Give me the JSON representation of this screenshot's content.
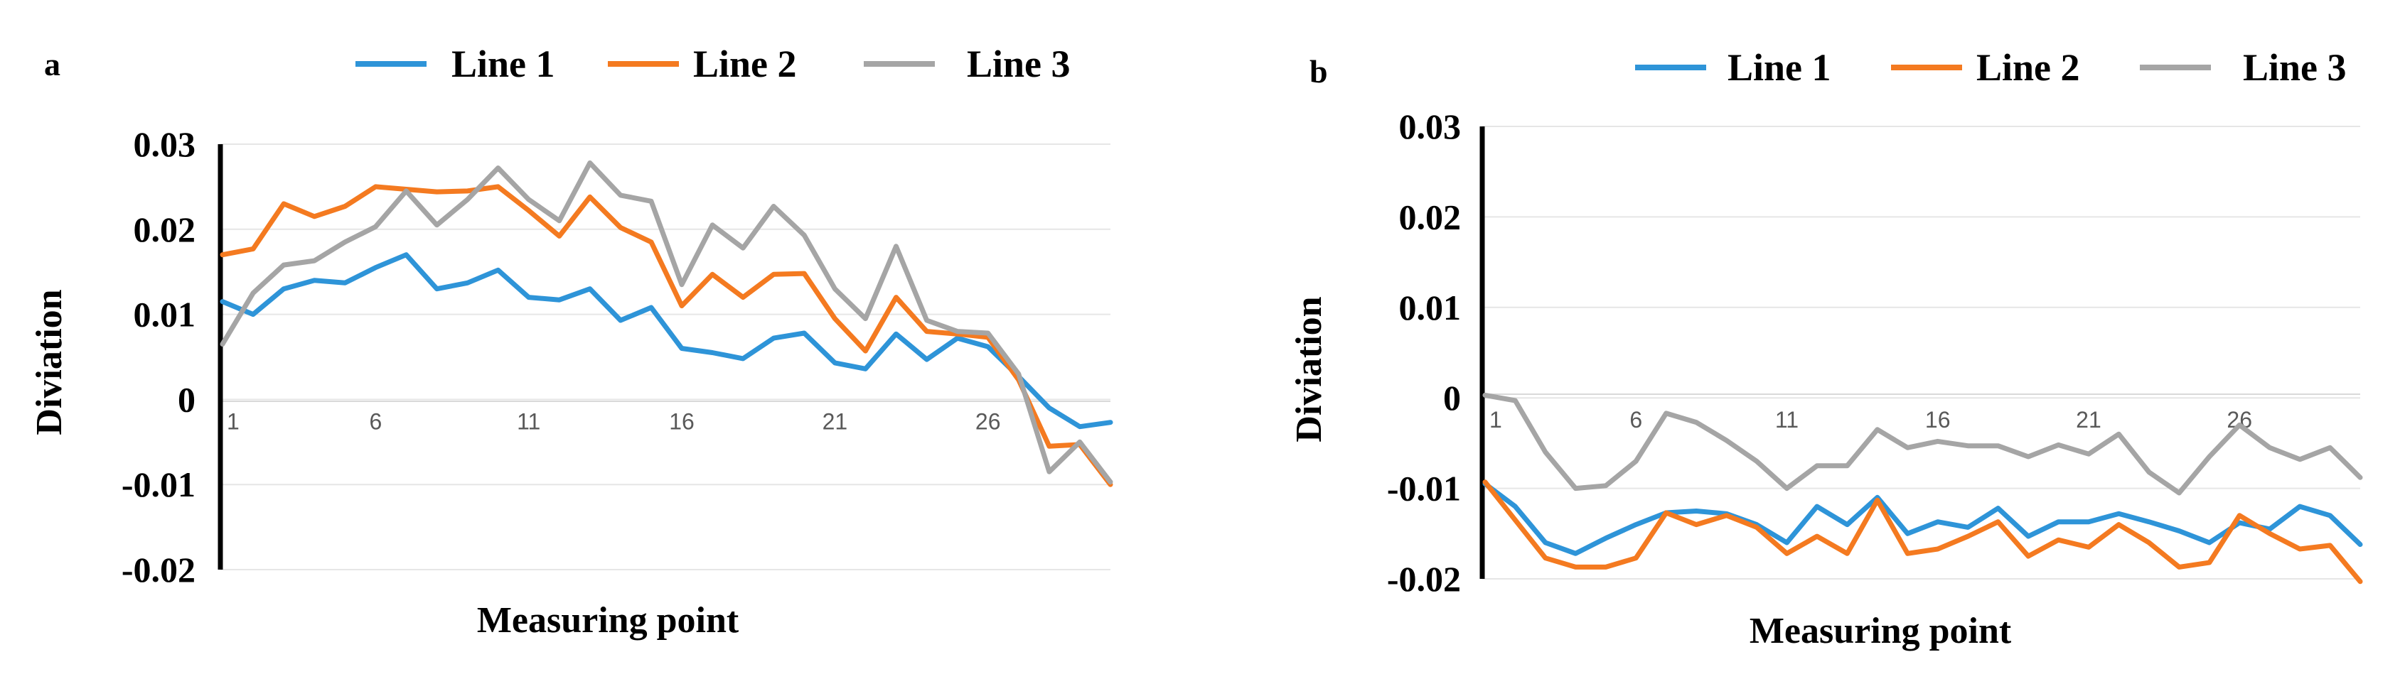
{
  "colors": {
    "line1": "#2e94d8",
    "line2": "#f47a20",
    "line3": "#a5a5a5"
  },
  "chart_data": [
    {
      "type": "line",
      "panel_label": "a",
      "title": "",
      "xlabel": "Measuring point",
      "ylabel": "Diviation",
      "ylim": [
        -0.02,
        0.03
      ],
      "yticks": [
        -0.02,
        -0.01,
        0,
        0.01,
        0.02,
        0.03
      ],
      "ytick_labels": [
        "-0.02",
        "-0.01",
        "0",
        "0.01",
        "0.02",
        "0.03"
      ],
      "x": [
        1,
        2,
        3,
        4,
        5,
        6,
        7,
        8,
        9,
        10,
        11,
        12,
        13,
        14,
        15,
        16,
        17,
        18,
        19,
        20,
        21,
        22,
        23,
        24,
        25,
        26,
        27,
        28,
        29,
        30
      ],
      "xticks": [
        1,
        6,
        11,
        16,
        21,
        26
      ],
      "xtick_labels": [
        "1",
        "6",
        "11",
        "16",
        "21",
        "26"
      ],
      "legend_position": "top",
      "series": [
        {
          "name": "Line 1",
          "values": [
            0.0115,
            0.01,
            0.013,
            0.014,
            0.0137,
            0.0155,
            0.017,
            0.013,
            0.0137,
            0.0152,
            0.012,
            0.0117,
            0.013,
            0.0093,
            0.0108,
            0.006,
            0.0055,
            0.0048,
            0.0072,
            0.0078,
            0.0043,
            0.0036,
            0.0077,
            0.0047,
            0.0072,
            0.0062,
            0.0027,
            -0.001,
            -0.0032,
            -0.0027
          ]
        },
        {
          "name": "Line 2",
          "values": [
            0.017,
            0.0177,
            0.023,
            0.0215,
            0.0227,
            0.025,
            0.0247,
            0.0244,
            0.0245,
            0.025,
            0.0222,
            0.0192,
            0.0238,
            0.0202,
            0.0185,
            0.011,
            0.0147,
            0.012,
            0.0147,
            0.0148,
            0.0095,
            0.0057,
            0.012,
            0.008,
            0.0077,
            0.0073,
            0.0023,
            -0.0055,
            -0.0053,
            -0.01
          ]
        },
        {
          "name": "Line 3",
          "values": [
            0.0065,
            0.0125,
            0.0158,
            0.0163,
            0.0185,
            0.0203,
            0.0245,
            0.0205,
            0.0235,
            0.0272,
            0.0235,
            0.021,
            0.0278,
            0.024,
            0.0233,
            0.0135,
            0.0205,
            0.0178,
            0.0227,
            0.0193,
            0.013,
            0.0095,
            0.018,
            0.0093,
            0.008,
            0.0078,
            0.003,
            -0.0085,
            -0.005,
            -0.0097
          ]
        }
      ]
    },
    {
      "type": "line",
      "panel_label": "b",
      "title": "",
      "xlabel": "Measuring point",
      "ylabel": "Diviation",
      "ylim": [
        -0.02,
        0.03
      ],
      "yticks": [
        -0.02,
        -0.01,
        0,
        0.01,
        0.02,
        0.03
      ],
      "ytick_labels": [
        "-0.02",
        "-0.01",
        "0",
        "0.01",
        "0.02",
        "0.03"
      ],
      "x": [
        1,
        2,
        3,
        4,
        5,
        6,
        7,
        8,
        9,
        10,
        11,
        12,
        13,
        14,
        15,
        16,
        17,
        18,
        19,
        20,
        21,
        22,
        23,
        24,
        25,
        26,
        27,
        28,
        29,
        30
      ],
      "xticks": [
        1,
        6,
        11,
        16,
        21,
        26
      ],
      "xtick_labels": [
        "1",
        "6",
        "11",
        "16",
        "21",
        "26"
      ],
      "legend_position": "top",
      "series": [
        {
          "name": "Line 1",
          "values": [
            -0.0095,
            -0.012,
            -0.016,
            -0.0172,
            -0.0155,
            -0.014,
            -0.0127,
            -0.0125,
            -0.0128,
            -0.014,
            -0.016,
            -0.012,
            -0.014,
            -0.011,
            -0.015,
            -0.0137,
            -0.0143,
            -0.0122,
            -0.0153,
            -0.0137,
            -0.0137,
            -0.0128,
            -0.0137,
            -0.0147,
            -0.016,
            -0.0138,
            -0.0145,
            -0.012,
            -0.013,
            -0.0162
          ]
        },
        {
          "name": "Line 2",
          "values": [
            -0.0093,
            -0.0135,
            -0.0177,
            -0.0187,
            -0.0187,
            -0.0177,
            -0.0127,
            -0.014,
            -0.013,
            -0.0143,
            -0.0172,
            -0.0153,
            -0.0172,
            -0.0113,
            -0.0172,
            -0.0167,
            -0.0153,
            -0.0137,
            -0.0175,
            -0.0157,
            -0.0165,
            -0.014,
            -0.016,
            -0.0187,
            -0.0182,
            -0.013,
            -0.015,
            -0.0167,
            -0.0163,
            -0.0203
          ]
        },
        {
          "name": "Line 3",
          "values": [
            0.0003,
            -0.0003,
            -0.006,
            -0.01,
            -0.0097,
            -0.007,
            -0.0017,
            -0.0027,
            -0.0047,
            -0.007,
            -0.01,
            -0.0075,
            -0.0075,
            -0.0035,
            -0.0055,
            -0.0048,
            -0.0053,
            -0.0053,
            -0.0065,
            -0.0052,
            -0.0062,
            -0.004,
            -0.0082,
            -0.0105,
            -0.0065,
            -0.003,
            -0.0055,
            -0.0068,
            -0.0055,
            -0.0088
          ]
        }
      ]
    }
  ]
}
